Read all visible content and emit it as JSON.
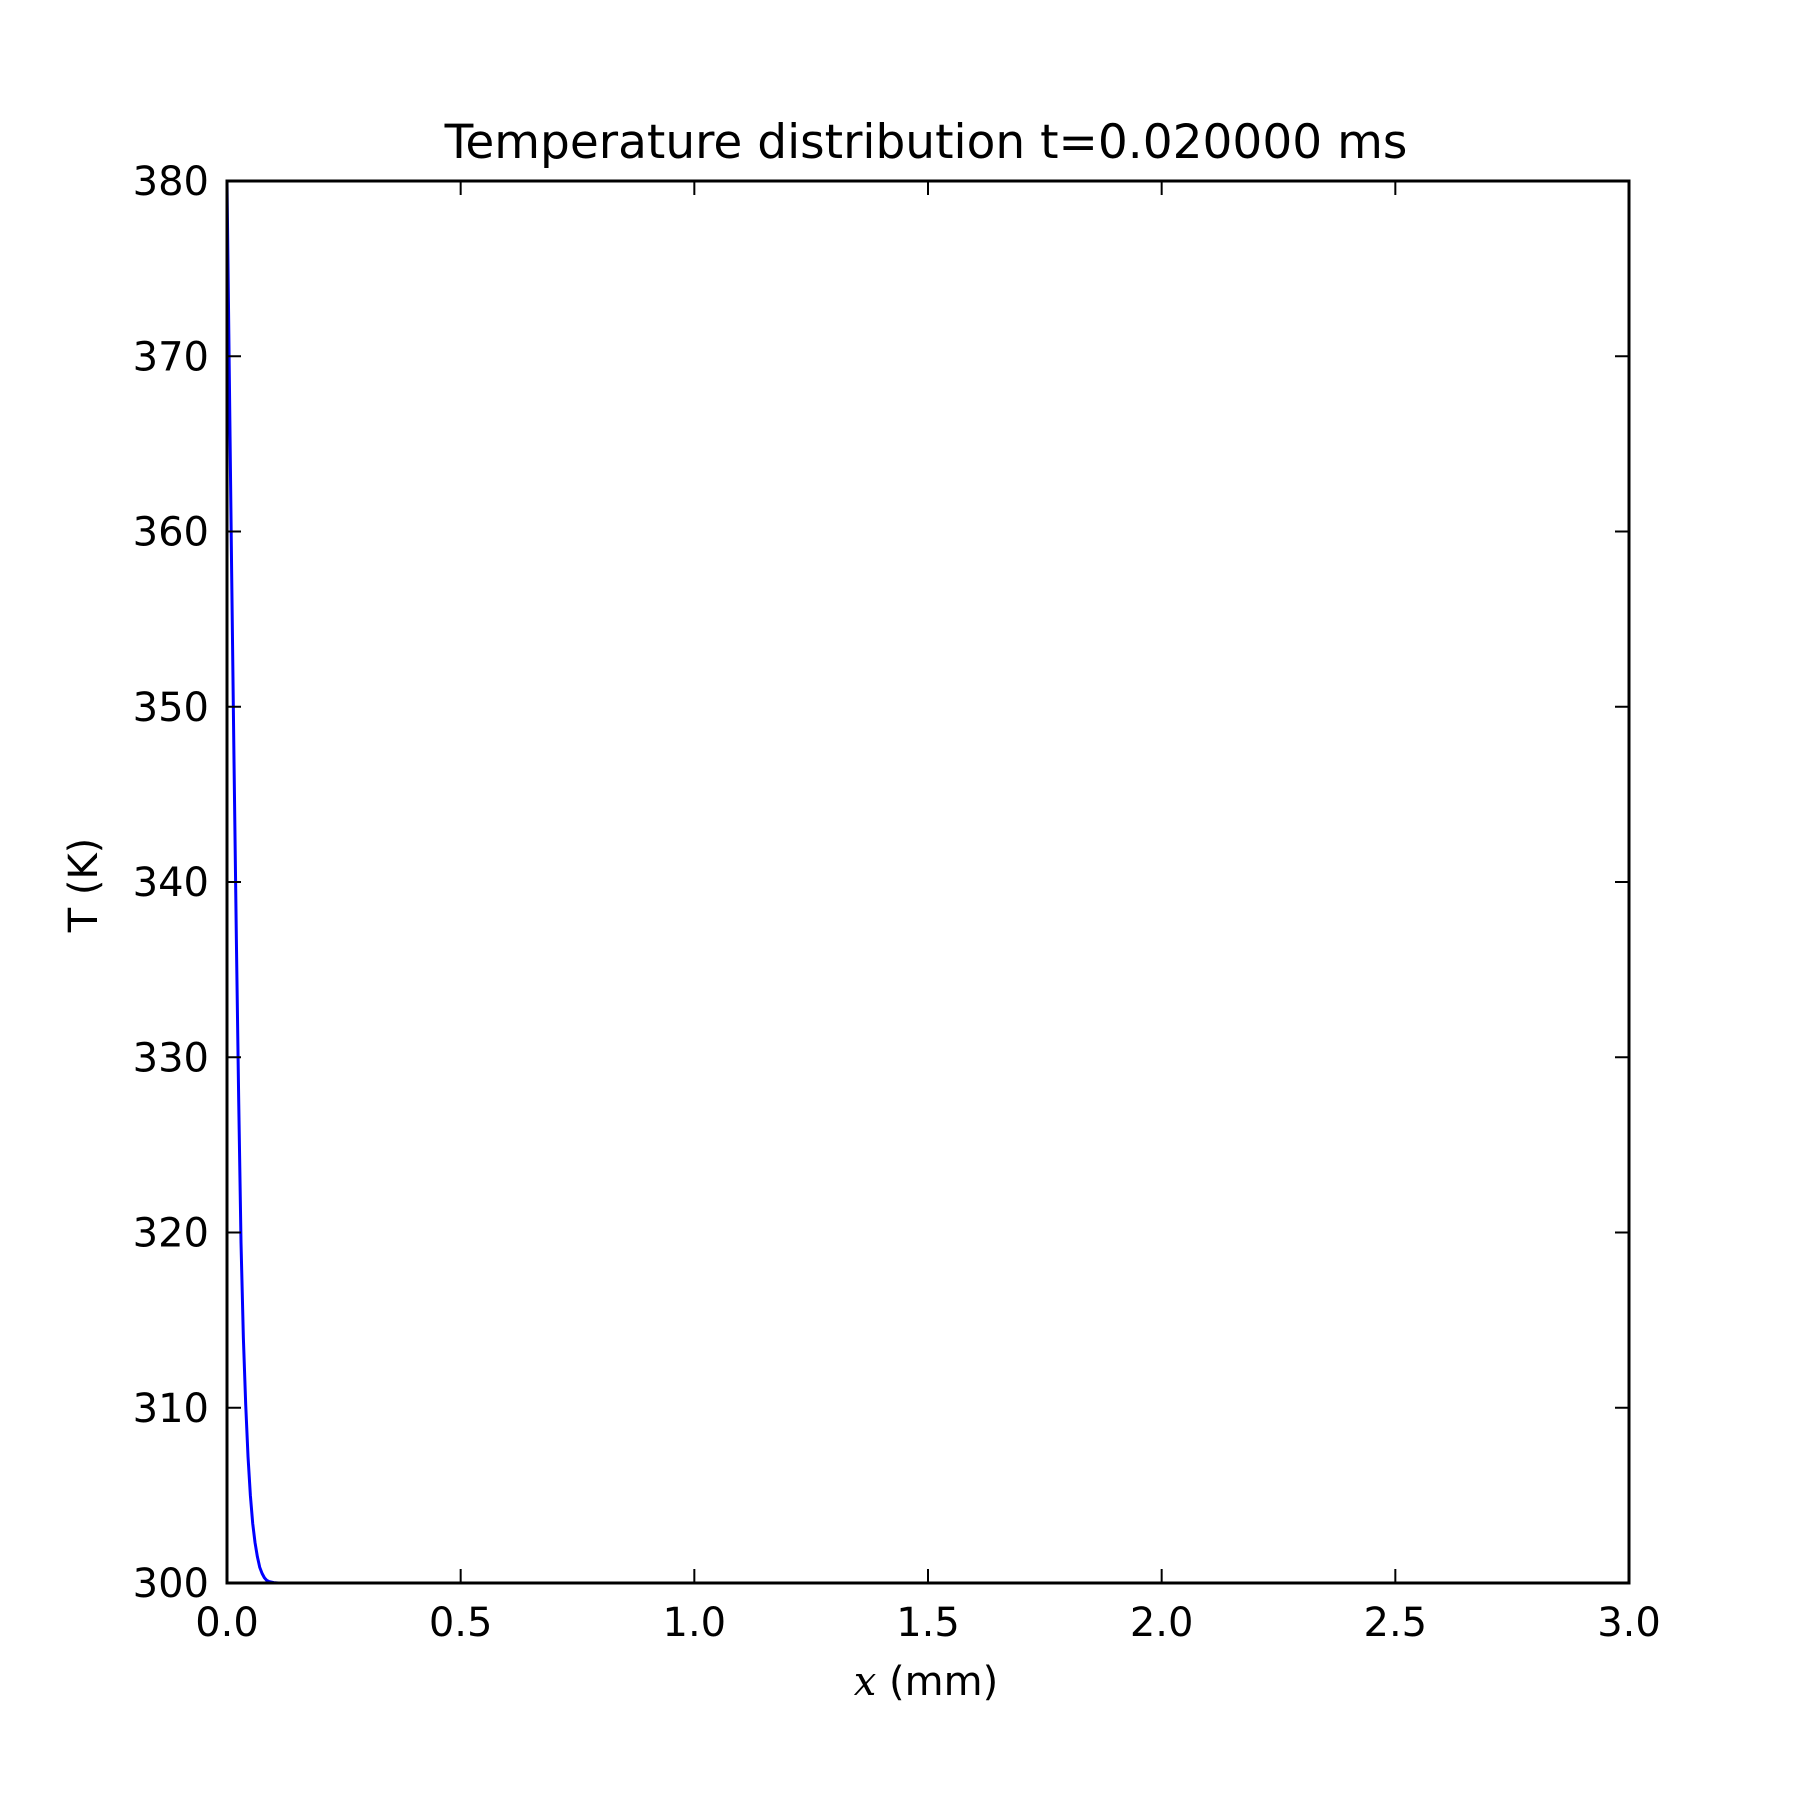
{
  "chart_data": {
    "type": "line",
    "title": "Temperature distribution t=0.020000 ms",
    "xlabel_var": "x",
    "xlabel_rest": " (mm)",
    "ylabel": "T (K)",
    "xlim": [
      0,
      3
    ],
    "ylim": [
      300,
      380
    ],
    "xticks": [
      0,
      0.5,
      1,
      1.5,
      2,
      2.5,
      3
    ],
    "xtick_labels": [
      "0.0",
      "0.5",
      "1.0",
      "1.5",
      "2.0",
      "2.5",
      "3.0"
    ],
    "yticks": [
      300,
      310,
      320,
      330,
      340,
      350,
      360,
      370,
      380
    ],
    "ytick_labels": [
      "300",
      "310",
      "320",
      "330",
      "340",
      "350",
      "360",
      "370",
      "380"
    ],
    "grid": false,
    "series": [
      {
        "color": "#0000ff",
        "x": [
          0,
          0.005,
          0.01,
          0.015,
          0.02,
          0.025,
          0.03,
          0.035,
          0.04,
          0.045,
          0.05,
          0.055,
          0.06,
          0.065,
          0.07,
          0.075,
          0.08,
          0.085,
          0.09,
          0.1,
          0.11,
          0.12,
          0.15,
          0.2,
          0.5,
          1.0,
          1.5,
          2.0,
          2.5,
          3.0
        ],
        "y": [
          380,
          368.8,
          357.6,
          346.9,
          336.8,
          327.6,
          319.4,
          314.0,
          310.2,
          307.2,
          305.0,
          303.4,
          302.3,
          301.5,
          300.9,
          300.55,
          300.3,
          300.15,
          300.08,
          300.02,
          300.0,
          300.0,
          300.0,
          300.0,
          300.0,
          300.0,
          300.0,
          300.0,
          300.0,
          300.0
        ]
      }
    ]
  }
}
